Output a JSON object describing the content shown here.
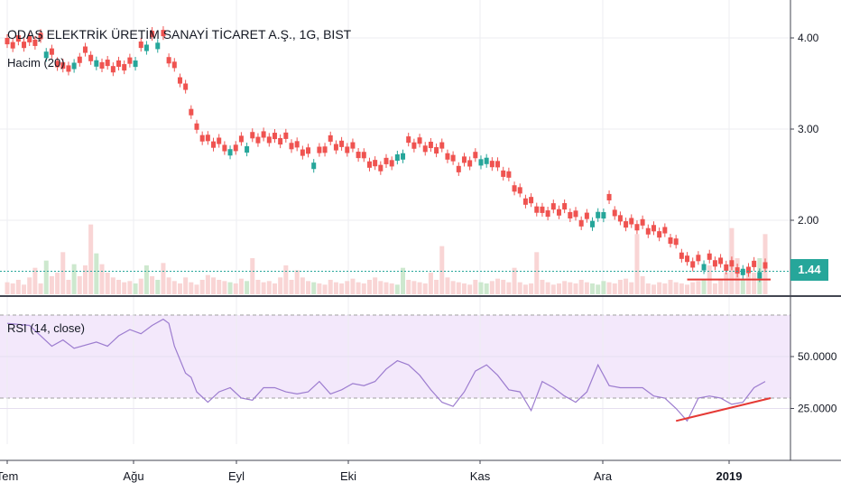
{
  "symbol_title": "ODAŞ ELEKTRİK ÜRETİM SANAYİ TİCARET A.Ş., 1G, BIST",
  "volume_label": "Hacim (20)",
  "rsi_label": "RSI (14, close)",
  "last_price": "1.44",
  "colors": {
    "up": "#26a69a",
    "down": "#ef5350",
    "rsi_line": "#9c7ccf",
    "rsi_band": "#f3e8fb",
    "trendline": "#e53935",
    "price_line": "#26a69a"
  },
  "chart_data": [
    {
      "type": "candlestick",
      "title": "ODAŞ ELEKTRİK ÜRETİM SANAYİ TİCARET A.Ş., 1G, BIST",
      "y_ticks": [
        "4.00",
        "3.00",
        "2.00"
      ],
      "ylim": [
        1.2,
        4.4
      ],
      "x_ticks": [
        "Tem",
        "Ağu",
        "Eyl",
        "Eki",
        "Kas",
        "Ara",
        "2019"
      ],
      "close_path": [
        [
          0,
          3.9
        ],
        [
          6,
          3.95
        ],
        [
          10,
          3.62
        ],
        [
          14,
          3.8
        ],
        [
          18,
          3.65
        ],
        [
          22,
          3.68
        ],
        [
          25,
          3.95
        ],
        [
          28,
          4.0
        ],
        [
          29,
          3.75
        ],
        [
          32,
          3.4
        ],
        [
          34,
          2.95
        ],
        [
          36,
          2.85
        ],
        [
          40,
          2.75
        ],
        [
          44,
          2.88
        ],
        [
          50,
          2.85
        ],
        [
          52,
          2.78
        ],
        [
          55,
          2.65
        ],
        [
          58,
          2.82
        ],
        [
          62,
          2.75
        ],
        [
          66,
          2.55
        ],
        [
          69,
          2.62
        ],
        [
          72,
          2.82
        ],
        [
          78,
          2.75
        ],
        [
          81,
          2.55
        ],
        [
          85,
          2.7
        ],
        [
          89,
          2.5
        ],
        [
          93,
          2.2
        ],
        [
          96,
          2.05
        ],
        [
          100,
          2.1
        ],
        [
          103,
          1.95
        ],
        [
          106,
          2.05
        ],
        [
          108,
          2.2
        ],
        [
          110,
          1.95
        ],
        [
          114,
          1.9
        ],
        [
          118,
          1.82
        ],
        [
          120,
          1.7
        ],
        [
          122,
          1.5
        ],
        [
          125,
          1.55
        ],
        [
          130,
          1.45
        ],
        [
          135,
          1.45
        ],
        [
          136,
          1.44
        ]
      ],
      "up_candles": [
        7,
        12,
        16,
        23,
        25,
        27,
        40,
        43,
        55,
        70,
        71,
        85,
        86,
        105,
        106,
        107,
        125,
        132,
        135
      ],
      "last_price": 1.44,
      "support_line": [
        1.35,
        1.35
      ],
      "volume": [
        10,
        9,
        12,
        8,
        14,
        22,
        9,
        28,
        15,
        18,
        35,
        12,
        25,
        15,
        24,
        58,
        34,
        25,
        18,
        14,
        12,
        10,
        11,
        9,
        13,
        24,
        15,
        12,
        26,
        14,
        11,
        9,
        14,
        10,
        8,
        12,
        16,
        14,
        12,
        11,
        10,
        9,
        13,
        11,
        30,
        12,
        10,
        11,
        9,
        14,
        24,
        12,
        20,
        14,
        11,
        10,
        9,
        8,
        12,
        10,
        9,
        11,
        13,
        10,
        9,
        12,
        14,
        11,
        10,
        9,
        8,
        22,
        12,
        11,
        10,
        9,
        18,
        12,
        40,
        14,
        11,
        10,
        9,
        8,
        12,
        10,
        9,
        11,
        13,
        12,
        10,
        22,
        10,
        8,
        9,
        35,
        12,
        10,
        8,
        9,
        11,
        10,
        9,
        12,
        10,
        9,
        8,
        11,
        10,
        9,
        12,
        13,
        10,
        50,
        15,
        9,
        8,
        10,
        9,
        12,
        10,
        9,
        8,
        10,
        11,
        12,
        24,
        9,
        13,
        18,
        55,
        30,
        12,
        20,
        18,
        30,
        50
      ]
    },
    {
      "type": "line",
      "title": "RSI (14, close)",
      "y_ticks": [
        "50.0000",
        "25.0000"
      ],
      "ylim": [
        10,
        72
      ],
      "overbought": 70,
      "oversold": 30,
      "x": [
        0,
        4,
        8,
        10,
        12,
        16,
        18,
        20,
        22,
        24,
        26,
        28,
        29,
        30,
        32,
        33,
        34,
        36,
        38,
        40,
        42,
        44,
        46,
        48,
        50,
        52,
        54,
        56,
        58,
        60,
        62,
        64,
        66,
        68,
        70,
        72,
        74,
        76,
        78,
        80,
        82,
        84,
        86,
        88,
        90,
        92,
        94,
        96,
        98,
        100,
        102,
        104,
        106,
        108,
        110,
        112,
        114,
        116,
        118,
        120,
        122,
        124,
        126,
        128,
        130,
        132,
        134,
        136
      ],
      "values": [
        66,
        65,
        55,
        58,
        54,
        57,
        55,
        60,
        63,
        61,
        65,
        68,
        66,
        55,
        42,
        40,
        33,
        28,
        33,
        35,
        30,
        29,
        35,
        35,
        33,
        32,
        33,
        38,
        32,
        34,
        37,
        36,
        38,
        44,
        48,
        46,
        41,
        34,
        28,
        26,
        33,
        43,
        46,
        41,
        34,
        33,
        24,
        38,
        35,
        31,
        28,
        33,
        46,
        36,
        35,
        35,
        35,
        31,
        30,
        25,
        19,
        30,
        31,
        30,
        27,
        28,
        35,
        38
      ],
      "trendline": [
        [
          120,
          19
        ],
        [
          136,
          30
        ]
      ]
    }
  ]
}
